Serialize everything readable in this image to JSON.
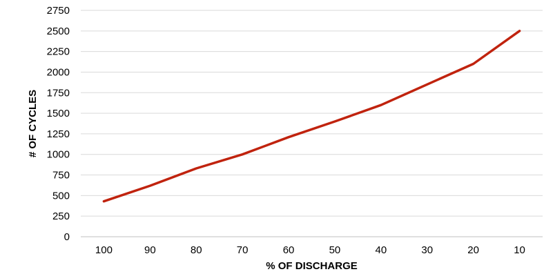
{
  "chart_data": {
    "type": "line",
    "title": "",
    "xlabel": "% OF DISCHARGE",
    "ylabel": "# OF CYCLES",
    "categories": [
      "100",
      "90",
      "80",
      "70",
      "60",
      "50",
      "40",
      "30",
      "20",
      "10"
    ],
    "series": [
      {
        "values": [
          430,
          620,
          830,
          1000,
          1210,
          1400,
          1600,
          1850,
          2100,
          2500
        ],
        "color": "#c0230e"
      }
    ],
    "ylim": [
      0,
      2750
    ],
    "yticks": [
      "0",
      "250",
      "500",
      "750",
      "1000",
      "1250",
      "1500",
      "1750",
      "2000",
      "2250",
      "2500",
      "2750"
    ],
    "grid": true,
    "legend": "none"
  }
}
